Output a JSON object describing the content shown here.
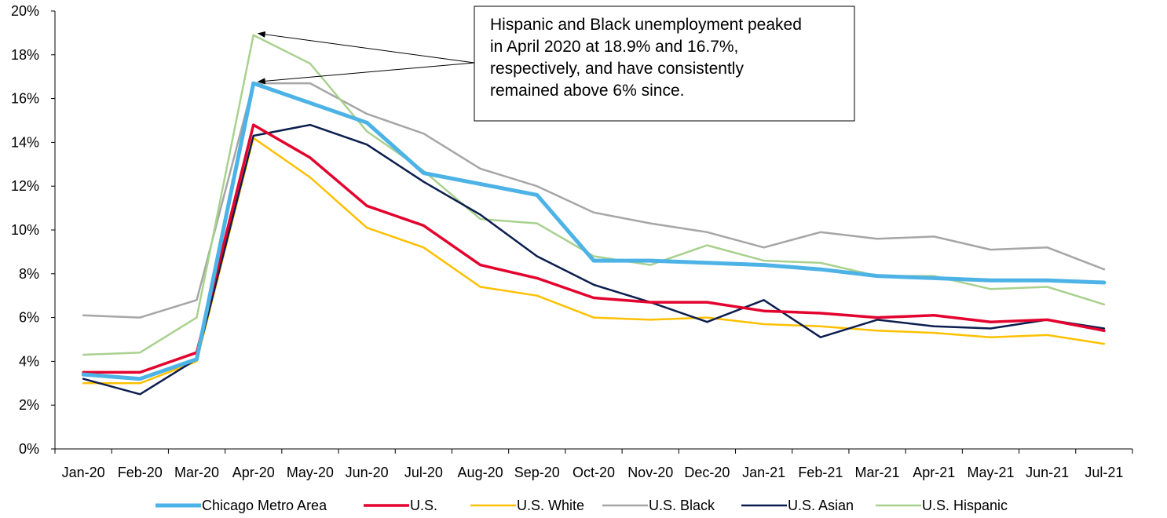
{
  "chart_data": {
    "type": "line",
    "title": "",
    "xlabel": "",
    "ylabel": "",
    "ylim": [
      0,
      20
    ],
    "y_tick_step": 2,
    "y_tick_format": "percent",
    "grid": false,
    "legend_position": "bottom",
    "categories": [
      "Jan-20",
      "Feb-20",
      "Mar-20",
      "Apr-20",
      "May-20",
      "Jun-20",
      "Jul-20",
      "Aug-20",
      "Sep-20",
      "Oct-20",
      "Nov-20",
      "Dec-20",
      "Jan-21",
      "Feb-21",
      "Mar-21",
      "Apr-21",
      "May-21",
      "Jun-21",
      "Jul-21"
    ],
    "series": [
      {
        "name": "Chicago Metro Area",
        "color": "#4db3e6",
        "values": [
          3.4,
          3.2,
          4.1,
          16.7,
          15.8,
          14.9,
          12.6,
          12.1,
          11.6,
          8.6,
          8.6,
          8.5,
          8.4,
          8.2,
          7.9,
          7.8,
          7.7,
          7.7,
          7.6
        ]
      },
      {
        "name": "U.S.",
        "color": "#e3032e",
        "values": [
          3.5,
          3.5,
          4.4,
          14.8,
          13.3,
          11.1,
          10.2,
          8.4,
          7.8,
          6.9,
          6.7,
          6.7,
          6.3,
          6.2,
          6.0,
          6.1,
          5.8,
          5.9,
          5.4
        ]
      },
      {
        "name": "U.S. White",
        "color": "#ffc000",
        "values": [
          3.0,
          3.0,
          4.0,
          14.2,
          12.4,
          10.1,
          9.2,
          7.4,
          7.0,
          6.0,
          5.9,
          6.0,
          5.7,
          5.6,
          5.4,
          5.3,
          5.1,
          5.2,
          4.8
        ]
      },
      {
        "name": "U.S. Black",
        "color": "#a6a6a6",
        "values": [
          6.1,
          6.0,
          6.8,
          16.7,
          16.7,
          15.3,
          14.4,
          12.8,
          12.0,
          10.8,
          10.3,
          9.9,
          9.2,
          9.9,
          9.6,
          9.7,
          9.1,
          9.2,
          8.2
        ]
      },
      {
        "name": "U.S. Asian",
        "color": "#0c1e4f",
        "values": [
          3.2,
          2.5,
          4.1,
          14.3,
          14.8,
          13.9,
          12.2,
          10.7,
          8.8,
          7.5,
          6.7,
          5.8,
          6.8,
          5.1,
          5.9,
          5.6,
          5.5,
          5.9,
          5.5
        ]
      },
      {
        "name": "U.S. Hispanic",
        "color": "#a9d18e",
        "values": [
          4.3,
          4.4,
          6.0,
          18.9,
          17.6,
          14.5,
          12.7,
          10.5,
          10.3,
          8.8,
          8.4,
          9.3,
          8.6,
          8.5,
          7.9,
          7.9,
          7.3,
          7.4,
          6.6
        ]
      }
    ],
    "annotation": {
      "lines": [
        "Hispanic and Black unemployment peaked",
        "in April 2020 at 18.9% and 16.7%,",
        "respectively, and have consistently",
        "remained above 6% since."
      ],
      "arrow_targets": [
        {
          "category": "Apr-20",
          "value": 18.9
        },
        {
          "category": "Apr-20",
          "value": 16.7
        }
      ]
    }
  }
}
